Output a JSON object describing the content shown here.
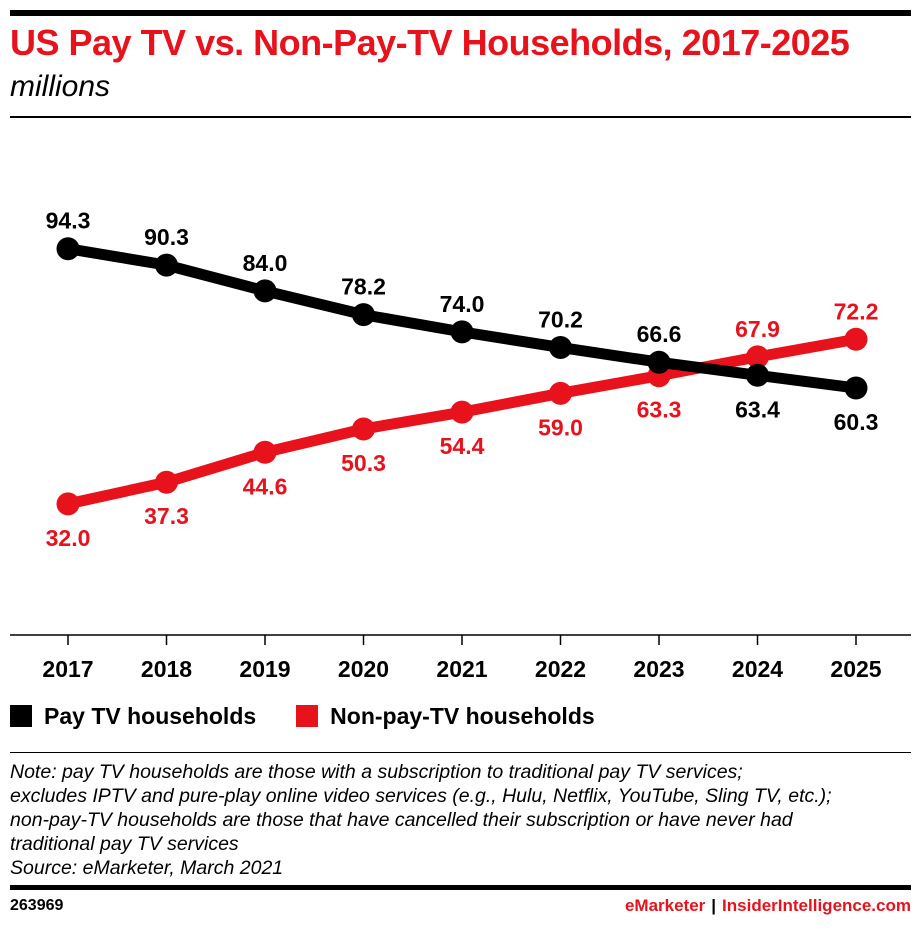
{
  "header": {
    "title": "US Pay TV vs. Non-Pay-TV Households, 2017-2025",
    "subtitle": "millions"
  },
  "colors": {
    "pay": "#000000",
    "nonpay": "#e8121c",
    "title": "#e8121c"
  },
  "chart_data": {
    "type": "line",
    "x": [
      "2017",
      "2018",
      "2019",
      "2020",
      "2021",
      "2022",
      "2023",
      "2024",
      "2025"
    ],
    "series": [
      {
        "name": "Pay TV households",
        "values": [
          94.3,
          90.3,
          84.0,
          78.2,
          74.0,
          70.2,
          66.6,
          63.4,
          60.3
        ],
        "labels": [
          "94.3",
          "90.3",
          "84.0",
          "78.2",
          "74.0",
          "70.2",
          "66.6",
          "63.4",
          "60.3"
        ]
      },
      {
        "name": "Non-pay-TV households",
        "values": [
          32.0,
          37.3,
          44.6,
          50.3,
          54.4,
          59.0,
          63.3,
          67.9,
          72.2
        ],
        "labels": [
          "32.0",
          "37.3",
          "44.6",
          "50.3",
          "54.4",
          "59.0",
          "63.3",
          "67.9",
          "72.2"
        ]
      }
    ],
    "ylim": [
      0,
      104
    ],
    "grid": false,
    "legend": "bottom-left"
  },
  "legend": {
    "items": [
      "Pay TV households",
      "Non-pay-TV households"
    ]
  },
  "note": {
    "lines": [
      "Note: pay TV households are those with a subscription to traditional pay TV services;",
      "excludes IPTV and pure-play online video services (e.g., Hulu, Netflix, YouTube, Sling TV, etc.);",
      "non-pay-TV households are those that have cancelled their subscription or have never had",
      "traditional pay TV services",
      "Source: eMarketer, March 2021"
    ]
  },
  "footer": {
    "id": "263969",
    "brand1": "eMarketer",
    "separator": "|",
    "brand2": "InsiderIntelligence.com"
  }
}
